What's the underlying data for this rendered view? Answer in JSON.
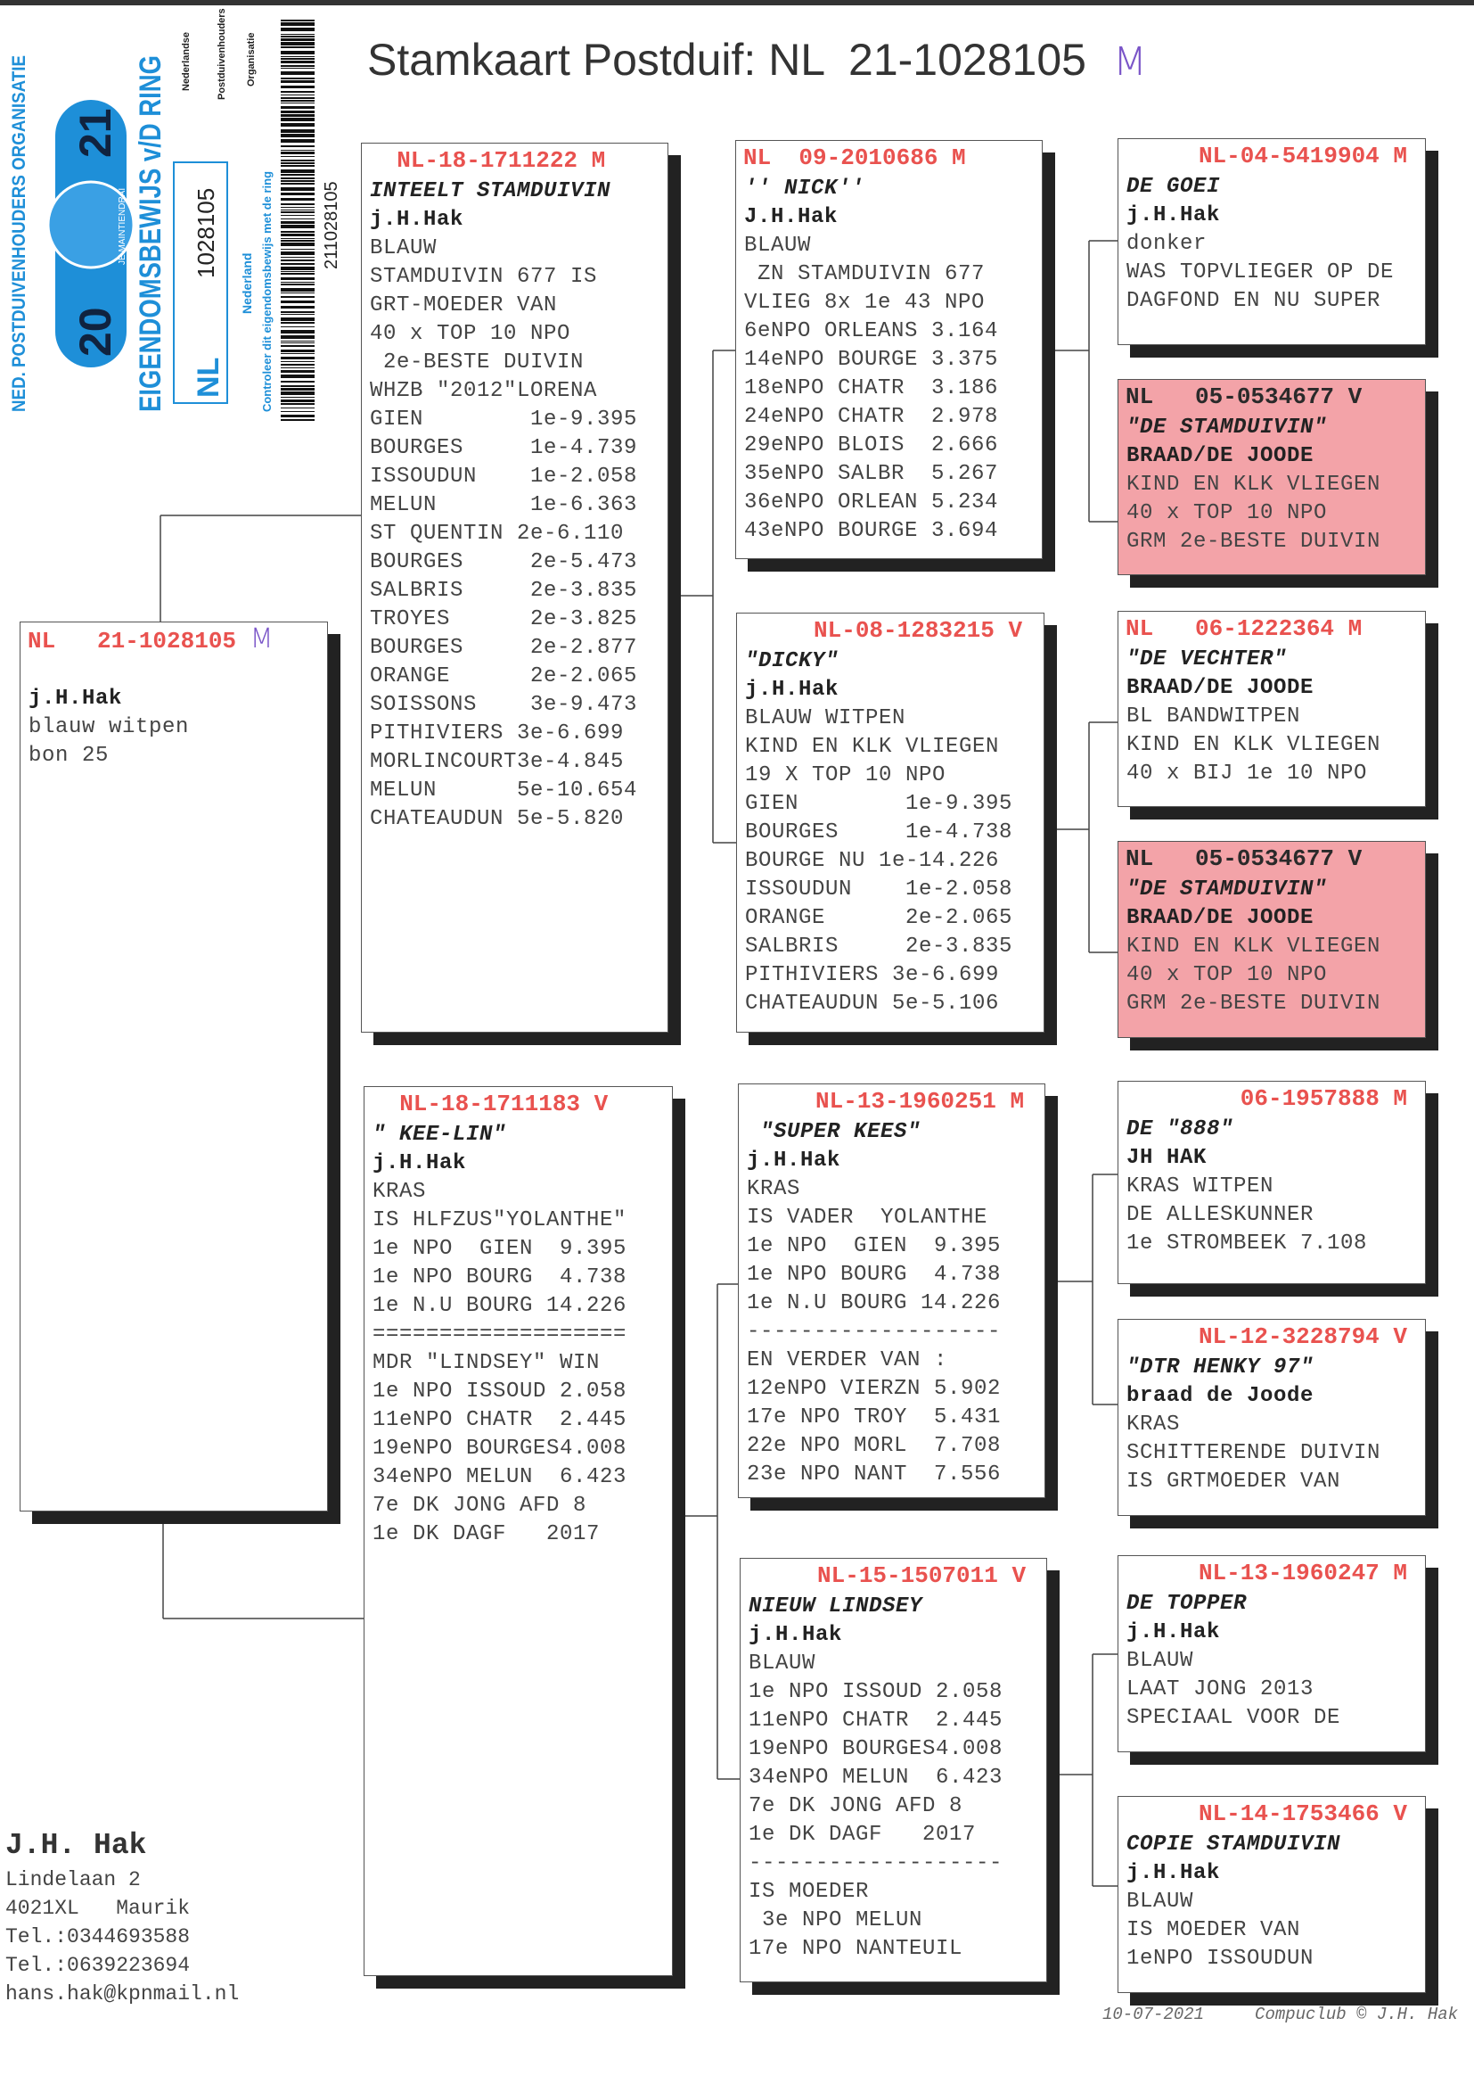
{
  "title": {
    "text": "Stamkaart Postduif: NL  21-1028105",
    "sex": "M"
  },
  "ring_card": {
    "org": "NED. POSTDUIVENHOUDERS ORGANISATIE",
    "year_left": "20",
    "year_right": "21",
    "slogan": "JE MAINTIENDRAI",
    "heading": "EIGENDOMSBEWIJS v/D RING",
    "country": "NL",
    "ring_number": "1028105",
    "nederland": "Nederland",
    "check_note": "Controleer dit eigendomsbewijs met de ring",
    "npo": [
      "Nederlandse",
      "Postduivenhouders",
      "Organisatie"
    ],
    "barcode_number": "211028105"
  },
  "colors": {
    "header_red": "#e9524f",
    "pink_box": "#f3a3a8",
    "ring_blue": "#1e8fd8",
    "handwriting_purple": "#7a55c8"
  },
  "boxes": {
    "subject": {
      "header": "NL   21-1028105 ",
      "header_sex": "M",
      "name": "",
      "owner": "j.H.Hak",
      "lines": [
        "blauw witpen",
        "bon 25"
      ]
    },
    "sire": {
      "header": "  NL-18-1711222 M",
      "name": "INTEELT STAMDUIVIN",
      "owner": "j.H.Hak",
      "lines": [
        "BLAUW",
        "STAMDUIVIN 677 IS",
        "GRT-MOEDER VAN",
        "40 x TOP 10 NPO",
        " 2e-BESTE DUIVIN",
        "WHZB \"2012\"LORENA",
        "GIEN        1e-9.395",
        "BOURGES     1e-4.739",
        "ISSOUDUN    1e-2.058",
        "MELUN       1e-6.363",
        "ST QUENTIN 2e-6.110",
        "BOURGES     2e-5.473",
        "SALBRIS     2e-3.835",
        "TROYES      2e-3.825",
        "BOURGES     2e-2.877",
        "ORANGE      2e-2.065",
        "SOISSONS    3e-9.473",
        "PITHIVIERS 3e-6.699",
        "MORLINCOURT3e-4.845",
        "MELUN      5e-10.654",
        "CHATEAUDUN 5e-5.820"
      ]
    },
    "dam": {
      "header": "  NL-18-1711183 V",
      "name": "\" KEE-LIN\"",
      "owner": "j.H.Hak",
      "lines": [
        "KRAS",
        "IS HLFZUS\"YOLANTHE\"",
        "1e NPO  GIEN  9.395",
        "1e NPO BOURG  4.738",
        "1e N.U BOURG 14.226",
        "===================",
        "MDR \"LINDSEY\" WIN",
        "1e NPO ISSOUD 2.058",
        "11eNPO CHATR  2.445",
        "19eNPO BOURGES4.008",
        "34eNPO MELUN  6.423",
        "7e DK JONG AFD 8",
        "1e DK DAGF   2017"
      ]
    },
    "gp1": {
      "header": "NL  09-2010686 M",
      "name": "'' NICK''",
      "owner": "J.H.Hak",
      "lines": [
        "BLAUW",
        " ZN STAMDUIVIN 677",
        "VLIEG 8x 1e 43 NPO",
        "6eNPO ORLEANS 3.164",
        "14eNPO BOURGE 3.375",
        "18eNPO CHATR  3.186",
        "24eNPO CHATR  2.978",
        "29eNPO BLOIS  2.666",
        "35eNPO SALBR  5.267",
        "36eNPO ORLEAN 5.234",
        "43eNPO BOURGE 3.694"
      ]
    },
    "gp2": {
      "header": "     NL-08-1283215 V",
      "name": "\"DICKY\"",
      "owner": "j.H.Hak",
      "lines": [
        "BLAUW WITPEN",
        "KIND EN KLK VLIEGEN",
        "19 X TOP 10 NPO",
        "GIEN        1e-9.395",
        "BOURGES     1e-4.738",
        "BOURGE NU 1e-14.226",
        "ISSOUDUN    1e-2.058",
        "ORANGE      2e-2.065",
        "SALBRIS     2e-3.835",
        "PITHIVIERS 3e-6.699",
        "CHATEAUDUN 5e-5.106"
      ]
    },
    "gp3": {
      "header": "     NL-13-1960251 M",
      "name": " \"SUPER KEES\"",
      "owner": "j.H.Hak",
      "lines": [
        "KRAS",
        "IS VADER  YOLANTHE",
        "1e NPO  GIEN  9.395",
        "1e NPO BOURG  4.738",
        "1e N.U BOURG 14.226",
        "-------------------",
        "EN VERDER VAN :",
        "12eNPO VIERZN 5.902",
        "17e NPO TROY  5.431",
        "22e NPO MORL  7.708",
        "23e NPO NANT  7.556"
      ]
    },
    "gp4": {
      "header": "     NL-15-1507011 V",
      "name": "NIEUW LINDSEY",
      "owner": "j.H.Hak",
      "lines": [
        "BLAUW",
        "1e NPO ISSOUD 2.058",
        "11eNPO CHATR  2.445",
        "19eNPO BOURGES4.008",
        "34eNPO MELUN  6.423",
        "7e DK JONG AFD 8",
        "1e DK DAGF   2017",
        "-------------------",
        "IS MOEDER",
        " 3e NPO MELUN",
        "17e NPO NANTEUIL"
      ]
    },
    "ggp1": {
      "header": "NL-04-5419904 M",
      "name": "DE GOEI",
      "owner": "j.H.Hak",
      "lines": [
        "donker",
        "WAS TOPVLIEGER OP DE",
        "DAGFOND EN NU SUPER"
      ]
    },
    "ggp2": {
      "header": "NL   05-0534677 V",
      "name": "\"DE STAMDUIVIN\"",
      "owner": "BRAAD/DE JOODE",
      "lines": [
        "KIND EN KLK VLIEGEN",
        "40 x TOP 10 NPO",
        "GRM 2e-BESTE DUIVIN"
      ]
    },
    "ggp3": {
      "header": "NL   06-1222364 M",
      "name": "\"DE VECHTER\"",
      "owner": "BRAAD/DE JOODE",
      "lines": [
        "BL BANDWITPEN",
        "KIND EN KLK VLIEGEN",
        "40 x BIJ 1e 10 NPO"
      ]
    },
    "ggp4": {
      "header": "NL   05-0534677 V",
      "name": "\"DE STAMDUIVIN\"",
      "owner": "BRAAD/DE JOODE",
      "lines": [
        "KIND EN KLK VLIEGEN",
        "40 x TOP 10 NPO",
        "GRM 2e-BESTE DUIVIN"
      ]
    },
    "ggp5": {
      "header": "06-1957888 M",
      "name": "DE \"888\"",
      "owner": "JH HAK",
      "lines": [
        "KRAS WITPEN",
        "DE ALLESKUNNER",
        "1e STROMBEEK 7.108"
      ]
    },
    "ggp6": {
      "header": "NL-12-3228794 V",
      "name": "\"DTR HENKY 97\"",
      "owner": "braad de Joode",
      "lines": [
        "KRAS",
        "SCHITTERENDE DUIVIN",
        "IS GRTMOEDER VAN"
      ]
    },
    "ggp7": {
      "header": "NL-13-1960247 M",
      "name": "DE TOPPER",
      "owner": "j.H.Hak",
      "lines": [
        "BLAUW",
        "LAAT JONG 2013",
        "SPECIAAL VOOR DE"
      ]
    },
    "ggp8": {
      "header": "NL-14-1753466 V",
      "name": "COPIE STAMDUIVIN",
      "owner": "j.H.Hak",
      "lines": [
        "BLAUW",
        "IS MOEDER VAN",
        "1eNPO ISSOUDUN"
      ]
    }
  },
  "owner": {
    "name": "J.H. Hak",
    "lines": [
      "Lindelaan 2",
      "4021XL   Maurik",
      "Tel.:0344693588",
      "Tel.:0639223694",
      "hans.hak@kpnmail.nl"
    ]
  },
  "footer": {
    "date": "10-07-2021",
    "credit": "Compuclub © J.H. Hak"
  }
}
